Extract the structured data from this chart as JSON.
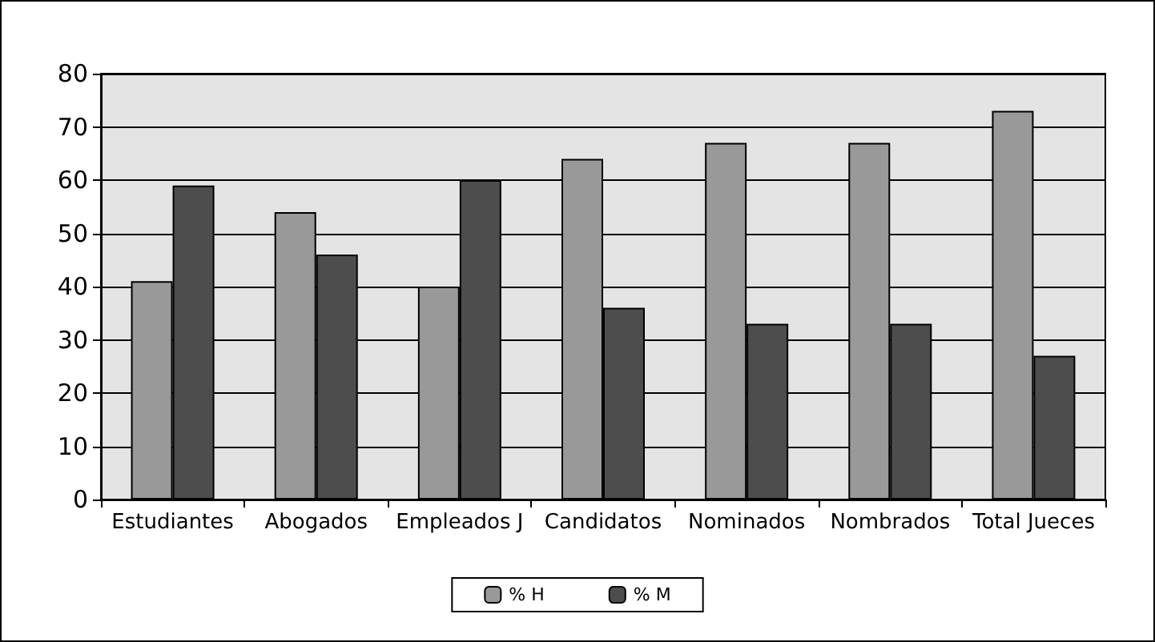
{
  "chart_data": {
    "type": "bar",
    "categories": [
      "Estudiantes",
      "Abogados",
      "Empleados J",
      "Candidatos",
      "Nominados",
      "Nombrados",
      "Total Jueces"
    ],
    "series": [
      {
        "name": "% H",
        "color": "#999999",
        "values": [
          41,
          54,
          40,
          64,
          67,
          67,
          73
        ]
      },
      {
        "name": "% M",
        "color": "#4d4d4d",
        "values": [
          59,
          46,
          60,
          36,
          33,
          33,
          27
        ]
      }
    ],
    "ylim": [
      0,
      80
    ],
    "yticks": [
      0,
      10,
      20,
      30,
      40,
      50,
      60,
      70,
      80
    ],
    "grid": "y",
    "legend": "bottom"
  }
}
